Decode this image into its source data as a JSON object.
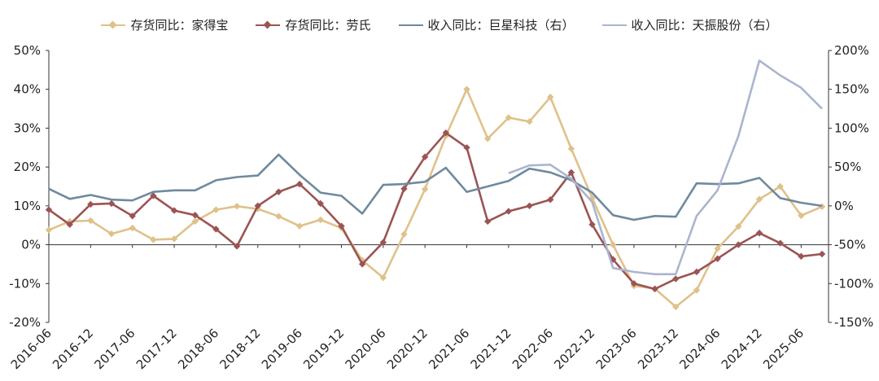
{
  "chart_data": {
    "type": "line",
    "x": [
      "2016-06",
      "2016-09",
      "2016-12",
      "2017-03",
      "2017-06",
      "2017-09",
      "2017-12",
      "2018-03",
      "2018-06",
      "2018-09",
      "2018-12",
      "2019-03",
      "2019-06",
      "2019-09",
      "2019-12",
      "2020-03",
      "2020-06",
      "2020-09",
      "2020-12",
      "2021-03",
      "2021-06",
      "2021-09",
      "2021-12",
      "2022-03",
      "2022-06",
      "2022-09",
      "2022-12",
      "2023-03",
      "2023-06",
      "2023-09",
      "2023-12",
      "2024-03",
      "2024-06",
      "2024-09",
      "2024-12",
      "2025-03",
      "2025-06",
      "2025-09"
    ],
    "x_tick_labels": [
      "2016-06",
      "2016-12",
      "2017-06",
      "2017-12",
      "2018-06",
      "2018-12",
      "2019-06",
      "2019-12",
      "2020-06",
      "2020-12",
      "2021-06",
      "2021-12",
      "2022-06",
      "2022-12",
      "2023-06",
      "2023-12",
      "2024-06",
      "2024-12",
      "2025-06"
    ],
    "y_left": {
      "ticks": [
        "50%",
        "40%",
        "30%",
        "20%",
        "10%",
        "0%",
        "-10%",
        "-20%"
      ],
      "range": [
        -20,
        50
      ]
    },
    "y_right": {
      "ticks": [
        "200%",
        "150%",
        "100%",
        "50%",
        "0%",
        "-50%",
        "-100%",
        "-150%"
      ],
      "range": [
        -150,
        200
      ]
    },
    "legend_position": "top",
    "grid": false,
    "series": [
      {
        "name": "存货同比：家得宝",
        "axis": "left",
        "color": "#dfc18a",
        "marker": "diamond",
        "values": [
          3.8,
          6.0,
          6.2,
          2.8,
          4.3,
          1.3,
          1.5,
          6.0,
          9.0,
          9.9,
          9.2,
          7.3,
          4.8,
          6.4,
          4.3,
          -4.0,
          -8.5,
          2.7,
          14.3,
          28.0,
          40.0,
          27.3,
          32.7,
          31.7,
          38.0,
          24.7,
          12.0,
          0.0,
          -10.6,
          -11.3,
          -16.0,
          -11.7,
          -1.0,
          4.7,
          11.7,
          15.0,
          7.5,
          9.8
        ]
      },
      {
        "name": "存货同比：劳氏",
        "axis": "left",
        "color": "#9b5454",
        "marker": "diamond",
        "values": [
          9.0,
          5.2,
          10.4,
          10.6,
          7.4,
          12.6,
          8.8,
          7.6,
          4.0,
          -0.4,
          10.0,
          13.6,
          15.6,
          10.6,
          4.8,
          -5.0,
          0.6,
          14.4,
          22.6,
          28.8,
          25.0,
          6.0,
          8.6,
          10.0,
          11.6,
          18.6,
          5.2,
          -3.8,
          -10.0,
          -11.4,
          -8.8,
          -7.0,
          -3.6,
          0.0,
          3.0,
          0.4,
          -3.0,
          -2.4
        ]
      },
      {
        "name": "收入同比：巨星科技（右）",
        "axis": "right",
        "color": "#6f8a9d",
        "marker": "none",
        "values": [
          22,
          9,
          14,
          8,
          7,
          18,
          20,
          20,
          33,
          37,
          39,
          66,
          40,
          17,
          13,
          -10,
          27,
          28,
          31,
          49,
          18,
          25,
          32,
          48,
          43,
          33,
          17,
          -12,
          -18,
          -13,
          -14,
          29,
          28,
          29,
          36,
          10,
          4,
          0
        ]
      },
      {
        "name": "收入同比：天振股份（右）",
        "axis": "right",
        "color": "#aab5cf",
        "marker": "none",
        "values": [
          null,
          null,
          null,
          null,
          null,
          null,
          null,
          null,
          null,
          null,
          null,
          null,
          null,
          null,
          null,
          null,
          null,
          null,
          null,
          null,
          null,
          null,
          42,
          52,
          53,
          35,
          5,
          -80,
          -85,
          -88,
          -88,
          -13,
          20,
          90,
          187,
          168,
          152,
          125
        ]
      }
    ]
  }
}
